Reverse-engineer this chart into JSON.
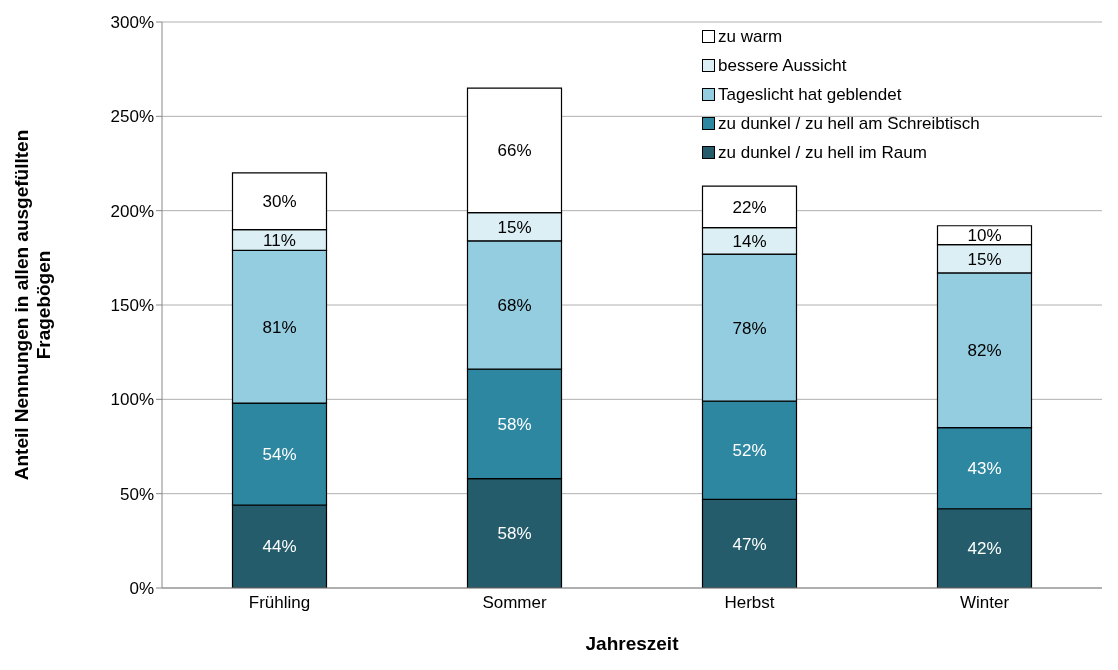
{
  "chart_data": {
    "type": "bar",
    "stacked": true,
    "xlabel": "Jahreszeit",
    "ylabel": "Anteil Nennungen in allen ausgefüllten Fragebögen",
    "categories": [
      "Frühling",
      "Sommer",
      "Herbst",
      "Winter"
    ],
    "ylim": [
      0,
      300
    ],
    "yticks": [
      {
        "value": 0,
        "label": "0%"
      },
      {
        "value": 50,
        "label": "50%"
      },
      {
        "value": 100,
        "label": "100%"
      },
      {
        "value": 150,
        "label": "150%"
      },
      {
        "value": 200,
        "label": "200%"
      },
      {
        "value": 250,
        "label": "250%"
      },
      {
        "value": 300,
        "label": "300%"
      }
    ],
    "grid": "y",
    "legend": "top right",
    "series": [
      {
        "name": "zu dunkel / zu hell im Raum",
        "color": "#245c6b",
        "values": [
          44,
          58,
          47,
          42
        ],
        "value_labels": [
          "44%",
          "58%",
          "47%",
          "42%"
        ]
      },
      {
        "name": "zu dunkel / zu hell am Schreibtisch",
        "color": "#2e87a0",
        "values": [
          54,
          58,
          52,
          43
        ],
        "value_labels": [
          "54%",
          "58%",
          "52%",
          "43%"
        ]
      },
      {
        "name": "Tageslicht hat geblendet",
        "color": "#94cde0",
        "values": [
          81,
          68,
          78,
          82
        ],
        "value_labels": [
          "81%",
          "68%",
          "78%",
          "82%"
        ]
      },
      {
        "name": "bessere Aussicht",
        "color": "#dbeff5",
        "values": [
          11,
          15,
          14,
          15
        ],
        "value_labels": [
          "11%",
          "15%",
          "14%",
          "15%"
        ]
      },
      {
        "name": "zu warm",
        "color": "#ffffff",
        "values": [
          30,
          66,
          22,
          10
        ],
        "value_labels": [
          "30%",
          "66%",
          "22%",
          "10%"
        ]
      }
    ]
  }
}
